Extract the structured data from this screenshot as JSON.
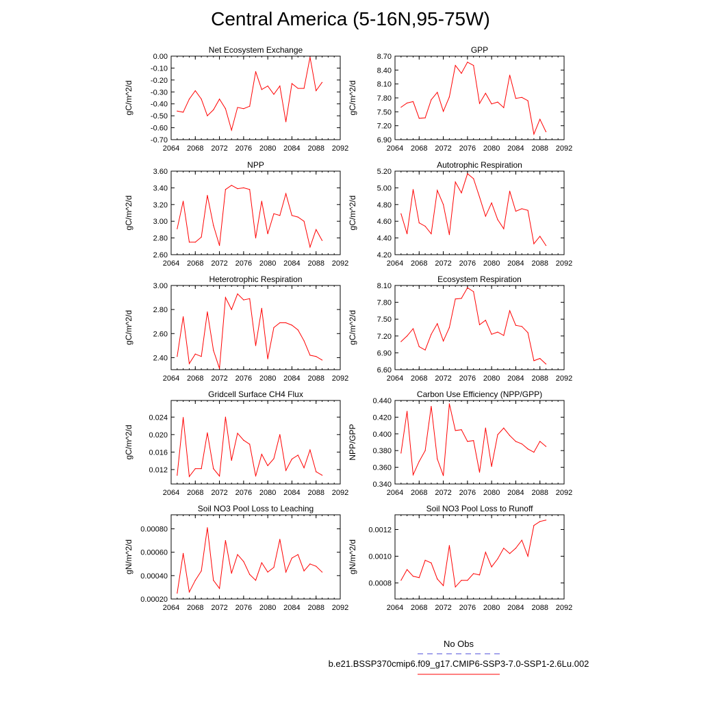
{
  "title": "Central America (5-16N,95-75W)",
  "legend": {
    "obs_label": "No Obs",
    "obs_color": "#4b4bd8",
    "run_label": "b.e21.BSSP370cmip6.f09_g17.CMIP6-SSP3-7.0-SSP1-2.6Lu.002",
    "run_color": "#ff0000"
  },
  "chart_data": [
    {
      "type": "line",
      "title": "Net Ecosystem Exchange",
      "ylabel": "gC/m^2/d",
      "xlim": [
        2064,
        2092
      ],
      "xticks": [
        "2064",
        "2068",
        "2072",
        "2076",
        "2080",
        "2084",
        "2088",
        "2092"
      ],
      "ylim": [
        -0.7,
        0.0
      ],
      "yticks": [
        "0.00",
        "-0.10",
        "-0.20",
        "-0.30",
        "-0.40",
        "-0.50",
        "-0.60",
        "-0.70"
      ],
      "x": [
        2065,
        2066,
        2067,
        2068,
        2069,
        2070,
        2071,
        2072,
        2073,
        2074,
        2075,
        2076,
        2077,
        2078,
        2079,
        2080,
        2081,
        2082,
        2083,
        2084,
        2085,
        2086,
        2087,
        2088,
        2089
      ],
      "values": [
        -0.46,
        -0.47,
        -0.36,
        -0.29,
        -0.36,
        -0.5,
        -0.45,
        -0.36,
        -0.44,
        -0.62,
        -0.43,
        -0.44,
        -0.42,
        -0.13,
        -0.28,
        -0.25,
        -0.32,
        -0.25,
        -0.55,
        -0.23,
        -0.27,
        -0.27,
        -0.01,
        -0.29,
        -0.22
      ]
    },
    {
      "type": "line",
      "title": "GPP",
      "ylabel": "gC/m^2/d",
      "xlim": [
        2064,
        2092
      ],
      "xticks": [
        "2064",
        "2068",
        "2072",
        "2076",
        "2080",
        "2084",
        "2088",
        "2092"
      ],
      "ylim": [
        6.9,
        8.7
      ],
      "yticks": [
        "8.70",
        "8.40",
        "8.10",
        "7.80",
        "7.50",
        "7.20",
        "6.90"
      ],
      "x": [
        2065,
        2066,
        2067,
        2068,
        2069,
        2070,
        2071,
        2072,
        2073,
        2074,
        2075,
        2076,
        2077,
        2078,
        2079,
        2080,
        2081,
        2082,
        2083,
        2084,
        2085,
        2086,
        2087,
        2088,
        2089
      ],
      "values": [
        7.6,
        7.69,
        7.72,
        7.36,
        7.37,
        7.76,
        7.92,
        7.51,
        7.82,
        8.5,
        8.33,
        8.57,
        8.5,
        7.68,
        7.9,
        7.67,
        7.71,
        7.59,
        8.29,
        7.79,
        7.81,
        7.74,
        7.02,
        7.34,
        7.07
      ]
    },
    {
      "type": "line",
      "title": "NPP",
      "ylabel": "gC/m^2/d",
      "xlim": [
        2064,
        2092
      ],
      "xticks": [
        "2064",
        "2068",
        "2072",
        "2076",
        "2080",
        "2084",
        "2088",
        "2092"
      ],
      "ylim": [
        2.6,
        3.6
      ],
      "yticks": [
        "3.60",
        "3.40",
        "3.20",
        "3.00",
        "2.80",
        "2.60"
      ],
      "x": [
        2065,
        2066,
        2067,
        2068,
        2069,
        2070,
        2071,
        2072,
        2073,
        2074,
        2075,
        2076,
        2077,
        2078,
        2079,
        2080,
        2081,
        2082,
        2083,
        2084,
        2085,
        2086,
        2087,
        2088,
        2089
      ],
      "values": [
        2.91,
        3.24,
        2.75,
        2.75,
        2.81,
        3.31,
        2.95,
        2.71,
        3.38,
        3.43,
        3.39,
        3.4,
        3.38,
        2.8,
        3.24,
        2.85,
        3.09,
        3.07,
        3.33,
        3.07,
        3.05,
        3.0,
        2.69,
        2.9,
        2.77
      ]
    },
    {
      "type": "line",
      "title": "Autotrophic Respiration",
      "ylabel": "gC/m^2/d",
      "xlim": [
        2064,
        2092
      ],
      "xticks": [
        "2064",
        "2068",
        "2072",
        "2076",
        "2080",
        "2084",
        "2088",
        "2092"
      ],
      "ylim": [
        4.2,
        5.2
      ],
      "yticks": [
        "5.20",
        "5.00",
        "4.80",
        "4.60",
        "4.40",
        "4.20"
      ],
      "x": [
        2065,
        2066,
        2067,
        2068,
        2069,
        2070,
        2071,
        2072,
        2073,
        2074,
        2075,
        2076,
        2077,
        2078,
        2079,
        2080,
        2081,
        2082,
        2083,
        2084,
        2085,
        2086,
        2087,
        2088,
        2089
      ],
      "values": [
        4.69,
        4.45,
        4.98,
        4.58,
        4.54,
        4.45,
        4.97,
        4.8,
        4.44,
        5.07,
        4.94,
        5.17,
        5.11,
        4.89,
        4.66,
        4.82,
        4.62,
        4.51,
        4.96,
        4.72,
        4.75,
        4.73,
        4.33,
        4.42,
        4.31
      ]
    },
    {
      "type": "line",
      "title": "Heterotrophic Respiration",
      "ylabel": "gC/m^2/d",
      "xlim": [
        2064,
        2092
      ],
      "xticks": [
        "2064",
        "2068",
        "2072",
        "2076",
        "2080",
        "2084",
        "2088",
        "2092"
      ],
      "ylim": [
        2.3,
        3.0
      ],
      "yticks": [
        "3.00",
        "2.80",
        "2.60",
        "2.40"
      ],
      "x": [
        2065,
        2066,
        2067,
        2068,
        2069,
        2070,
        2071,
        2072,
        2073,
        2074,
        2075,
        2076,
        2077,
        2078,
        2079,
        2080,
        2081,
        2082,
        2083,
        2084,
        2085,
        2086,
        2087,
        2088,
        2089
      ],
      "values": [
        2.41,
        2.74,
        2.35,
        2.43,
        2.41,
        2.78,
        2.46,
        2.31,
        2.9,
        2.8,
        2.93,
        2.88,
        2.89,
        2.5,
        2.81,
        2.39,
        2.65,
        2.69,
        2.69,
        2.67,
        2.63,
        2.54,
        2.42,
        2.41,
        2.38
      ]
    },
    {
      "type": "line",
      "title": "Ecosystem Respiration",
      "ylabel": "gC/m^2/d",
      "xlim": [
        2064,
        2092
      ],
      "xticks": [
        "2064",
        "2068",
        "2072",
        "2076",
        "2080",
        "2084",
        "2088",
        "2092"
      ],
      "ylim": [
        6.6,
        8.1
      ],
      "yticks": [
        "8.10",
        "7.80",
        "7.50",
        "7.20",
        "6.90",
        "6.60"
      ],
      "x": [
        2065,
        2066,
        2067,
        2068,
        2069,
        2070,
        2071,
        2072,
        2073,
        2074,
        2075,
        2076,
        2077,
        2078,
        2079,
        2080,
        2081,
        2082,
        2083,
        2084,
        2085,
        2086,
        2087,
        2088,
        2089
      ],
      "values": [
        7.1,
        7.2,
        7.33,
        7.01,
        6.95,
        7.23,
        7.42,
        7.11,
        7.35,
        7.86,
        7.87,
        8.06,
        7.99,
        7.4,
        7.48,
        7.23,
        7.27,
        7.21,
        7.65,
        7.39,
        7.37,
        7.26,
        6.76,
        6.8,
        6.7
      ]
    },
    {
      "type": "line",
      "title": "Gridcell Surface CH4 Flux",
      "ylabel": "gC/m^2/d",
      "xlim": [
        2064,
        2092
      ],
      "xticks": [
        "2064",
        "2068",
        "2072",
        "2076",
        "2080",
        "2084",
        "2088",
        "2092"
      ],
      "ylim": [
        0.0087,
        0.0278
      ],
      "yticks": [
        "0.024",
        "0.020",
        "0.016",
        "0.012"
      ],
      "ytick_values": [
        0.024,
        0.02,
        0.016,
        0.012
      ],
      "x": [
        2065,
        2066,
        2067,
        2068,
        2069,
        2070,
        2071,
        2072,
        2073,
        2074,
        2075,
        2076,
        2077,
        2078,
        2079,
        2080,
        2081,
        2082,
        2083,
        2084,
        2085,
        2086,
        2087,
        2088,
        2089
      ],
      "values": [
        0.0107,
        0.0239,
        0.0104,
        0.0122,
        0.0122,
        0.0204,
        0.0122,
        0.0105,
        0.024,
        0.0141,
        0.0203,
        0.0187,
        0.0178,
        0.0105,
        0.0155,
        0.0129,
        0.0145,
        0.02,
        0.0118,
        0.0144,
        0.0153,
        0.0124,
        0.0165,
        0.0115,
        0.0107
      ]
    },
    {
      "type": "line",
      "title": "Carbon Use Efficiency (NPP/GPP)",
      "ylabel": "NPP/GPP",
      "xlim": [
        2064,
        2092
      ],
      "xticks": [
        "2064",
        "2068",
        "2072",
        "2076",
        "2080",
        "2084",
        "2088",
        "2092"
      ],
      "ylim": [
        0.34,
        0.44
      ],
      "yticks": [
        "0.440",
        "0.420",
        "0.400",
        "0.380",
        "0.360",
        "0.340"
      ],
      "x": [
        2065,
        2066,
        2067,
        2068,
        2069,
        2070,
        2071,
        2072,
        2073,
        2074,
        2075,
        2076,
        2077,
        2078,
        2079,
        2080,
        2081,
        2082,
        2083,
        2084,
        2085,
        2086,
        2087,
        2088,
        2089
      ],
      "values": [
        0.377,
        0.427,
        0.351,
        0.367,
        0.38,
        0.433,
        0.37,
        0.35,
        0.436,
        0.404,
        0.405,
        0.391,
        0.392,
        0.354,
        0.407,
        0.361,
        0.399,
        0.407,
        0.398,
        0.391,
        0.388,
        0.382,
        0.378,
        0.391,
        0.385
      ]
    },
    {
      "type": "line",
      "title": "Soil NO3 Pool Loss to Leaching",
      "ylabel": "gN/m^2/d",
      "xlim": [
        2064,
        2092
      ],
      "xticks": [
        "2064",
        "2068",
        "2072",
        "2076",
        "2080",
        "2084",
        "2088",
        "2092"
      ],
      "ylim": [
        0.0002,
        0.00092
      ],
      "yticks": [
        "0.00080",
        "0.00060",
        "0.00040",
        "0.00020"
      ],
      "ytick_values": [
        0.0008,
        0.0006,
        0.0004,
        0.0002
      ],
      "x": [
        2065,
        2066,
        2067,
        2068,
        2069,
        2070,
        2071,
        2072,
        2073,
        2074,
        2075,
        2076,
        2077,
        2078,
        2079,
        2080,
        2081,
        2082,
        2083,
        2084,
        2085,
        2086,
        2087,
        2088,
        2089
      ],
      "values": [
        0.00025,
        0.00059,
        0.00026,
        0.00036,
        0.00044,
        0.00081,
        0.00036,
        0.00029,
        0.0007,
        0.00042,
        0.00058,
        0.00052,
        0.00041,
        0.00036,
        0.00051,
        0.00043,
        0.00047,
        0.00071,
        0.00043,
        0.00055,
        0.00058,
        0.00044,
        0.0005,
        0.00048,
        0.00043
      ]
    },
    {
      "type": "line",
      "title": "Soil NO3 Pool Loss to Runoff",
      "ylabel": "gN/m^2/d",
      "xlim": [
        2064,
        2092
      ],
      "xticks": [
        "2064",
        "2068",
        "2072",
        "2076",
        "2080",
        "2084",
        "2088",
        "2092"
      ],
      "ylim": [
        0.00068,
        0.00131
      ],
      "yticks": [
        "0.0012",
        "0.0010",
        "0.0008"
      ],
      "ytick_values": [
        0.0012,
        0.001,
        0.0008
      ],
      "x": [
        2065,
        2066,
        2067,
        2068,
        2069,
        2070,
        2071,
        2072,
        2073,
        2074,
        2075,
        2076,
        2077,
        2078,
        2079,
        2080,
        2081,
        2082,
        2083,
        2084,
        2085,
        2086,
        2087,
        2088,
        2089
      ],
      "values": [
        0.00082,
        0.0009,
        0.00085,
        0.00084,
        0.00097,
        0.00095,
        0.00083,
        0.00078,
        0.00108,
        0.00077,
        0.00082,
        0.00082,
        0.00087,
        0.00086,
        0.00103,
        0.00092,
        0.00098,
        0.00106,
        0.00102,
        0.00106,
        0.00112,
        0.001,
        0.00123,
        0.00126,
        0.00127
      ]
    }
  ]
}
